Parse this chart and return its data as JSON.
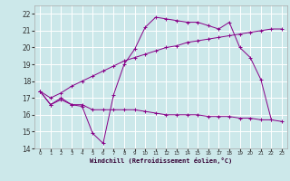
{
  "bg_color": "#cce8ea",
  "grid_color": "#ffffff",
  "line_color": "#880088",
  "xlabel": "Windchill (Refroidissement éolien,°C)",
  "xlim": [
    -0.5,
    23.5
  ],
  "ylim": [
    14,
    22.5
  ],
  "yticks": [
    14,
    15,
    16,
    17,
    18,
    19,
    20,
    21,
    22
  ],
  "xticks": [
    0,
    1,
    2,
    3,
    4,
    5,
    6,
    7,
    8,
    9,
    10,
    11,
    12,
    13,
    14,
    15,
    16,
    17,
    18,
    19,
    20,
    21,
    22,
    23
  ],
  "series": [
    {
      "x": [
        0,
        1,
        2,
        3,
        4,
        5,
        6,
        7,
        8,
        9,
        10,
        11,
        12,
        13,
        14,
        15,
        16,
        17,
        18,
        19,
        20,
        21,
        22
      ],
      "y": [
        17.4,
        16.6,
        16.9,
        16.6,
        16.5,
        14.9,
        14.3,
        17.2,
        19.0,
        19.9,
        21.2,
        21.8,
        21.7,
        21.6,
        21.5,
        21.5,
        21.3,
        21.1,
        21.5,
        20.0,
        19.4,
        18.1,
        15.7
      ]
    },
    {
      "x": [
        0,
        1,
        2,
        3,
        4,
        5,
        6,
        7,
        8,
        9,
        10,
        11,
        12,
        13,
        14,
        15,
        16,
        17,
        18,
        19,
        20,
        21,
        22,
        23
      ],
      "y": [
        17.4,
        16.6,
        17.0,
        16.6,
        16.6,
        16.3,
        16.3,
        16.3,
        16.3,
        16.3,
        16.2,
        16.1,
        16.0,
        16.0,
        16.0,
        16.0,
        15.9,
        15.9,
        15.9,
        15.8,
        15.8,
        15.7,
        15.7,
        15.6
      ]
    },
    {
      "x": [
        0,
        1,
        2,
        3,
        4,
        5,
        6,
        7,
        8,
        9,
        10,
        11,
        12,
        13,
        14,
        15,
        16,
        17,
        18,
        19,
        20,
        21,
        22,
        23
      ],
      "y": [
        17.4,
        17.0,
        17.3,
        17.7,
        18.0,
        18.3,
        18.6,
        18.9,
        19.2,
        19.4,
        19.6,
        19.8,
        20.0,
        20.1,
        20.3,
        20.4,
        20.5,
        20.6,
        20.7,
        20.8,
        20.9,
        21.0,
        21.1,
        21.1
      ]
    }
  ]
}
